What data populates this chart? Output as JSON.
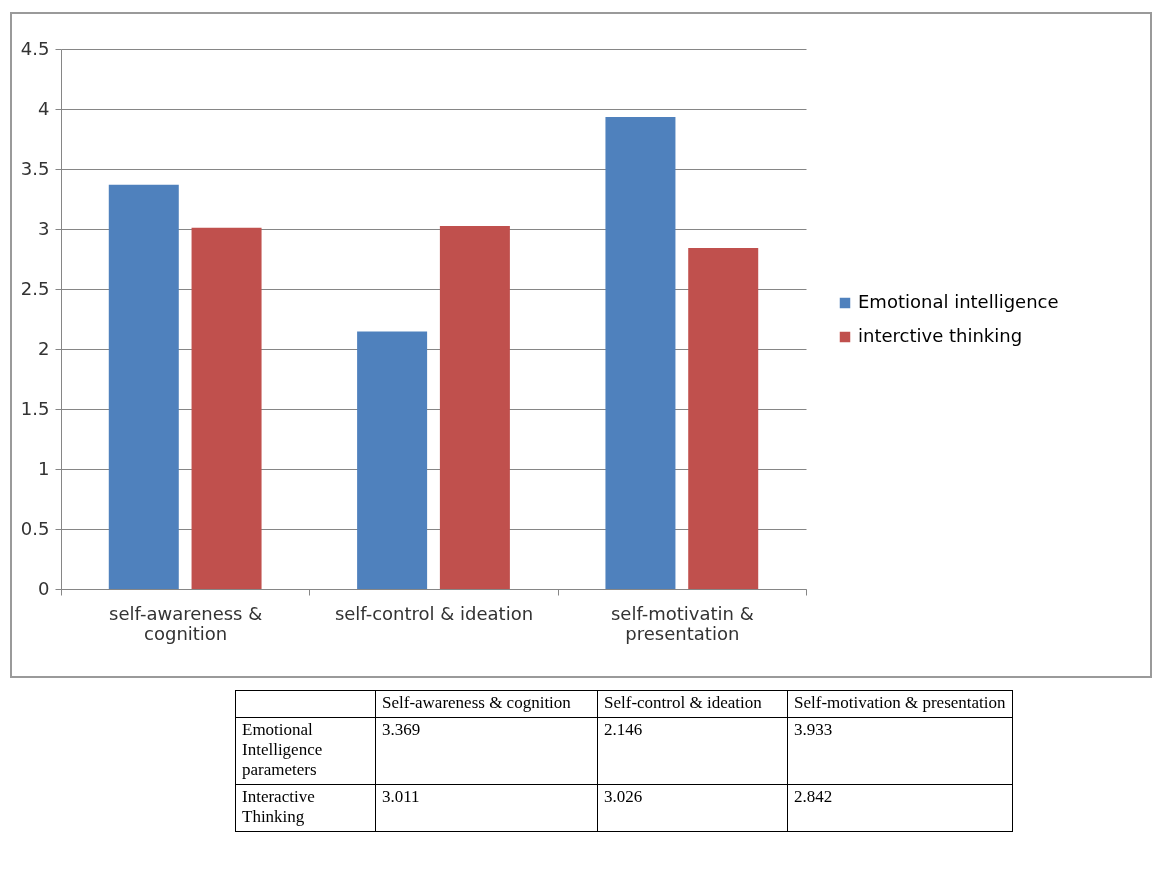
{
  "chart_data": [
    {
      "type": "bar",
      "categories": [
        "self-awareness & cognition",
        "self-control & ideation",
        "self-motivatin & presentation"
      ],
      "series": [
        {
          "name": "Emotional intelligence",
          "color": "#4f81bd",
          "values": [
            3.369,
            2.146,
            3.933
          ]
        },
        {
          "name": "interctive thinking",
          "color": "#c0504d",
          "values": [
            3.011,
            3.026,
            2.842
          ]
        }
      ],
      "ylim": [
        0,
        4.5
      ],
      "yticks": [
        0,
        0.5,
        1,
        1.5,
        2,
        2.5,
        3,
        3.5,
        4,
        4.5
      ],
      "grid": "y",
      "legend": "right"
    },
    {
      "type": "other",
      "annotations": [
        "Self-awareness & cognition",
        "Self-control & ideation",
        "Self-motivation & presentation",
        "Emotional Intelligence parameters",
        "3.369",
        "2.146",
        "3.933",
        "Interactive Thinking",
        "3.011",
        "3.026",
        "2.842"
      ]
    }
  ]
}
